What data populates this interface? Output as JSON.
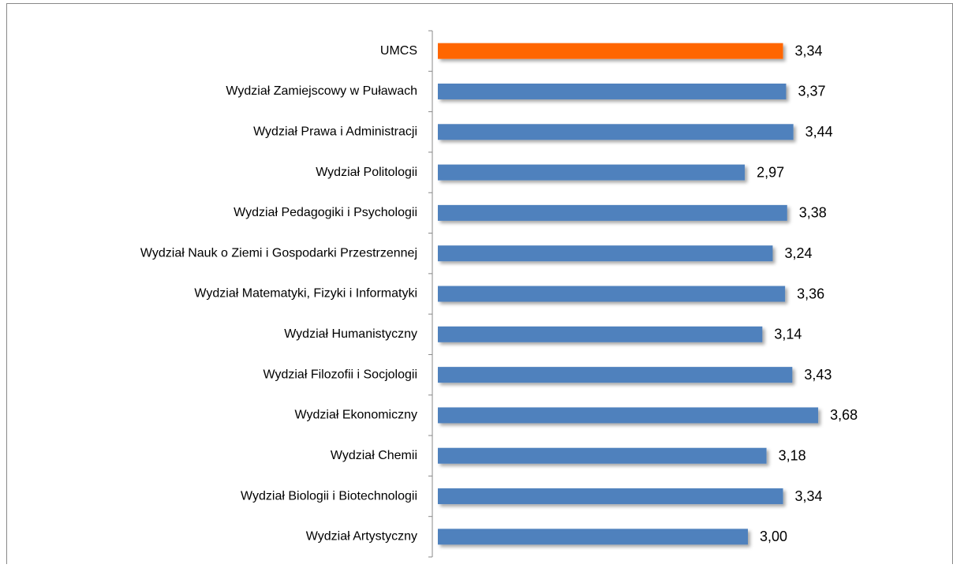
{
  "chart_data": {
    "type": "barh",
    "categories": [
      "UMCS",
      "Wydział Zamiejscowy w Puławach",
      "Wydział Prawa i Administracji",
      "Wydział Politologii",
      "Wydział Pedagogiki i Psychologii",
      "Wydział Nauk o Ziemi i Gospodarki Przestrzennej",
      "Wydział Matematyki, Fizyki i Informatyki",
      "Wydział Humanistyczny",
      "Wydział Filozofii i Socjologii",
      "Wydział Ekonomiczny",
      "Wydział Chemii",
      "Wydział Biologii i Biotechnologii",
      "Wydział Artystyczny"
    ],
    "values": [
      3.34,
      3.37,
      3.44,
      2.97,
      3.38,
      3.24,
      3.36,
      3.14,
      3.43,
      3.68,
      3.18,
      3.34,
      3.0
    ],
    "value_labels": [
      "3,34",
      "3,37",
      "3,44",
      "2,97",
      "3,38",
      "3,24",
      "3,36",
      "3,14",
      "3,43",
      "3,68",
      "3,18",
      "3,34",
      "3,00"
    ],
    "colors": [
      "#ff6600",
      "#4f81bd",
      "#4f81bd",
      "#4f81bd",
      "#4f81bd",
      "#4f81bd",
      "#4f81bd",
      "#4f81bd",
      "#4f81bd",
      "#4f81bd",
      "#4f81bd",
      "#4f81bd",
      "#4f81bd"
    ],
    "xlim": [
      0,
      5
    ]
  }
}
